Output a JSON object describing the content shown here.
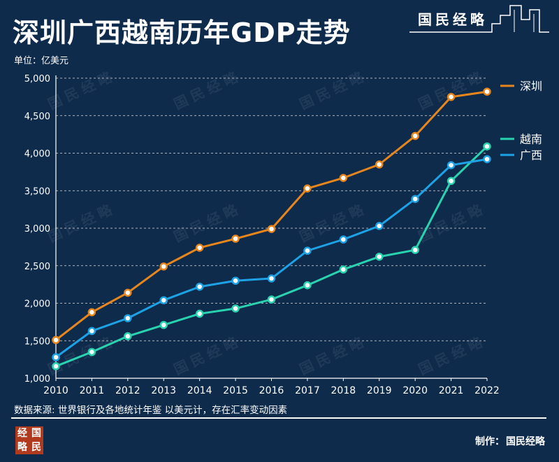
{
  "title": "深圳广西越南历年GDP走势",
  "brand": {
    "name": "国民经略",
    "logo_chars": [
      "经",
      "国",
      "略",
      "民"
    ]
  },
  "watermark": "国民经略",
  "unit_label": "单位：亿美元",
  "source_text": "数据来源: 世界银行及各地统计年鉴  以美元计，存在汇率变动因素",
  "credit": {
    "label": "制作：",
    "name": "国民经略"
  },
  "colors": {
    "background": "#0f2b4c",
    "shenzhen": "#e8861e",
    "vietnam": "#2ad3b0",
    "guangxi": "#1ea2e6",
    "grid": "#ffffff",
    "text": "#ffffff"
  },
  "chart_data": {
    "type": "line",
    "title": "深圳广西越南历年GDP走势",
    "xlabel": "",
    "ylabel": "单位：亿美元",
    "categories": [
      "2010",
      "2011",
      "2012",
      "2013",
      "2014",
      "2015",
      "2016",
      "2017",
      "2018",
      "2019",
      "2020",
      "2021",
      "2022"
    ],
    "ylim": [
      1000,
      5000
    ],
    "yticks": [
      1000,
      1500,
      2000,
      2500,
      3000,
      3500,
      4000,
      4500,
      5000
    ],
    "ytick_labels": [
      "1,000",
      "1,500",
      "2,000",
      "2,500",
      "3,000",
      "3,500",
      "4,000",
      "4,500",
      "5,000"
    ],
    "grid": "horizontal dashed",
    "legend": "right, at series ends",
    "series": [
      {
        "name": "深圳",
        "color": "#e8861e",
        "values": [
          1510,
          1880,
          2140,
          2490,
          2740,
          2860,
          2990,
          3530,
          3670,
          3850,
          4230,
          4750,
          4820
        ]
      },
      {
        "name": "越南",
        "color": "#2ad3b0",
        "values": [
          1160,
          1350,
          1560,
          1710,
          1860,
          1930,
          2050,
          2240,
          2450,
          2620,
          2710,
          3630,
          4090
        ]
      },
      {
        "name": "广西",
        "color": "#1ea2e6",
        "values": [
          1280,
          1630,
          1800,
          2040,
          2220,
          2300,
          2330,
          2700,
          2850,
          3030,
          3390,
          3840,
          3920
        ]
      }
    ]
  }
}
